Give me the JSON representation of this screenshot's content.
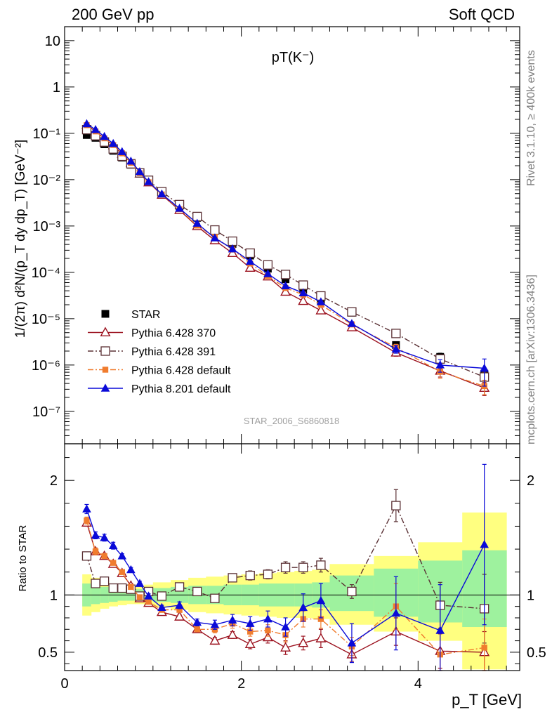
{
  "header": {
    "left": "200 GeV pp",
    "right": "Soft QCD"
  },
  "side": {
    "rivet": "Rivet 3.1.10, ≥ 400k events",
    "mcplots": "mcplots.cern.ch [arXiv:1306.3436]"
  },
  "colors": {
    "star": "#000000",
    "p370": "#9b111e",
    "p391": "#5a3034",
    "p6def": "#f07c2e",
    "p8": "#0a0ad8",
    "band_outer": "#ffff80",
    "band_inner": "#9ef29e"
  },
  "chart_data": [
    {
      "type": "scatter",
      "title": "pT(K⁻)",
      "analysis_id": "STAR_2006_S6860818",
      "ylabel": "1/(2π) d²N/(p_T dy dp_T) [GeV⁻²]",
      "yscale": "log",
      "xlim": [
        0,
        5.15
      ],
      "ylim": [
        2e-08,
        20
      ],
      "x_ticks": [
        0,
        2,
        4
      ],
      "y_ticks": [
        {
          "v": 1e-07,
          "label": "10⁻⁷"
        },
        {
          "v": 1e-06,
          "label": "10⁻⁶"
        },
        {
          "v": 1e-05,
          "label": "10⁻⁵"
        },
        {
          "v": 0.0001,
          "label": "10⁻⁴"
        },
        {
          "v": 0.001,
          "label": "10⁻³"
        },
        {
          "v": 0.01,
          "label": "10⁻²"
        },
        {
          "v": 0.1,
          "label": "10⁻¹"
        },
        {
          "v": 1,
          "label": "1"
        },
        {
          "v": 10,
          "label": "10"
        }
      ],
      "x": [
        0.25,
        0.35,
        0.45,
        0.55,
        0.65,
        0.75,
        0.85,
        0.95,
        1.1,
        1.3,
        1.5,
        1.7,
        1.9,
        2.1,
        2.3,
        2.5,
        2.7,
        2.9,
        3.25,
        3.75,
        4.25,
        4.75
      ],
      "series": [
        {
          "name": "STAR",
          "key": "star",
          "marker": "square-filled",
          "line": "none",
          "values": [
            0.092,
            0.08,
            0.058,
            0.042,
            0.03,
            0.021,
            0.014,
            0.0093,
            0.0055,
            0.0027,
            0.0015,
            0.00083,
            0.00041,
            0.00023,
            0.00012,
            7.1e-05,
            4.2e-05,
            2.5e-05,
            1.35e-05,
            2.7e-06,
            1.5e-06,
            6.5e-07
          ],
          "errors": [
            0.005,
            0.004,
            0.003,
            0.002,
            0.0015,
            0.001,
            0.0007,
            0.0005,
            0.0003,
            0.00015,
            8e-05,
            4e-05,
            2e-05,
            1.2e-05,
            7e-06,
            4e-06,
            3e-06,
            2e-06,
            1.2e-06,
            4e-07,
            3e-07,
            1.5e-07
          ]
        },
        {
          "name": "Pythia 6.428 370",
          "key": "p370",
          "marker": "triangle-open",
          "line": "solid",
          "values": [
            0.15,
            0.11,
            0.078,
            0.055,
            0.036,
            0.023,
            0.0135,
            0.0087,
            0.0047,
            0.0022,
            0.00099,
            0.00049,
            0.00026,
            0.000125,
            8.1e-05,
            3.8e-05,
            2.4e-05,
            1.5e-05,
            6.5e-06,
            1.85e-06,
            7.5e-07,
            3.2e-07
          ],
          "errors": [
            0,
            0,
            0,
            0,
            0,
            0,
            0,
            0,
            0,
            0,
            0,
            0,
            0,
            0,
            0,
            0,
            0,
            0,
            6e-07,
            3e-07,
            2e-07,
            1e-07
          ]
        },
        {
          "name": "Pythia 6.428 391",
          "key": "p391",
          "marker": "square-open",
          "line": "dashdot",
          "values": [
            0.12,
            0.089,
            0.065,
            0.046,
            0.032,
            0.022,
            0.014,
            0.0097,
            0.0055,
            0.0029,
            0.0016,
            0.00082,
            0.00047,
            0.00026,
            0.000145,
            9e-05,
            5.3e-05,
            3.1e-05,
            1.4e-05,
            4.8e-06,
            1.35e-06,
            5.5e-07
          ],
          "errors": [
            0,
            0,
            0,
            0,
            0,
            0,
            0,
            0,
            0,
            0,
            0,
            0,
            0,
            0,
            0,
            0,
            0,
            0,
            1e-06,
            3e-07,
            3e-07,
            1.5e-07
          ]
        },
        {
          "name": "Pythia 6.428 default",
          "key": "p6def",
          "marker": "square-small",
          "line": "dashdot",
          "values": [
            0.15,
            0.11,
            0.078,
            0.056,
            0.037,
            0.023,
            0.0138,
            0.0088,
            0.0048,
            0.0023,
            0.00102,
            0.00058,
            0.00031,
            0.000155,
            8.3e-05,
            4.6e-05,
            3.3e-05,
            2e-05,
            7.5e-06,
            2.4e-06,
            7.2e-07,
            3.5e-07
          ],
          "errors": [
            0,
            0,
            0,
            0,
            0,
            0,
            0,
            0,
            0,
            0,
            0,
            0,
            0,
            0,
            0,
            0,
            0,
            0,
            7e-07,
            4e-07,
            2e-07,
            1.2e-07
          ]
        },
        {
          "name": "Pythia 8.201 default",
          "key": "p8",
          "marker": "triangle-filled",
          "line": "solid",
          "values": [
            0.16,
            0.12,
            0.085,
            0.06,
            0.04,
            0.025,
            0.0148,
            0.009,
            0.0049,
            0.0024,
            0.00114,
            0.00055,
            0.00032,
            0.000172,
            9.3e-05,
            5.1e-05,
            3.6e-05,
            2.3e-05,
            7.8e-06,
            2.2e-06,
            1e-06,
            8.5e-07
          ],
          "errors": [
            0,
            0,
            0,
            0,
            0,
            0,
            0,
            0,
            0,
            0,
            0,
            0,
            0,
            0,
            0,
            0,
            0,
            0,
            8e-07,
            4e-07,
            3e-07,
            5e-07
          ]
        }
      ]
    },
    {
      "type": "scatter",
      "title": "Ratio to STAR",
      "ylabel": "Ratio to STAR",
      "xlabel": "p_T [GeV]",
      "xlim": [
        0,
        5.15
      ],
      "ylim": [
        0.34,
        2.32
      ],
      "x_ticks": [
        0,
        2,
        4
      ],
      "y_ticks": [
        0.5,
        1,
        2
      ],
      "bands": {
        "edges": [
          0.2,
          0.3,
          0.4,
          0.5,
          0.6,
          0.7,
          0.8,
          0.9,
          1.0,
          1.2,
          1.4,
          1.6,
          1.8,
          2.0,
          2.2,
          2.4,
          2.6,
          2.8,
          3.0,
          3.5,
          4.0,
          4.5,
          5.0
        ],
        "outer_low": [
          0.82,
          0.85,
          0.88,
          0.9,
          0.91,
          0.92,
          0.92,
          0.91,
          0.89,
          0.87,
          0.85,
          0.84,
          0.83,
          0.82,
          0.81,
          0.8,
          0.8,
          0.79,
          0.74,
          0.68,
          0.6,
          0.35
        ],
        "outer_high": [
          1.18,
          1.15,
          1.12,
          1.1,
          1.09,
          1.08,
          1.08,
          1.09,
          1.11,
          1.13,
          1.15,
          1.16,
          1.17,
          1.18,
          1.19,
          1.2,
          1.21,
          1.22,
          1.27,
          1.34,
          1.46,
          1.72
        ],
        "inner_low": [
          0.9,
          0.92,
          0.93,
          0.94,
          0.95,
          0.95,
          0.95,
          0.95,
          0.94,
          0.93,
          0.92,
          0.92,
          0.91,
          0.91,
          0.9,
          0.9,
          0.9,
          0.89,
          0.86,
          0.81,
          0.76,
          0.72
        ],
        "inner_high": [
          1.1,
          1.08,
          1.07,
          1.06,
          1.05,
          1.05,
          1.05,
          1.05,
          1.06,
          1.07,
          1.08,
          1.08,
          1.09,
          1.09,
          1.1,
          1.1,
          1.1,
          1.11,
          1.17,
          1.23,
          1.3,
          1.39
        ]
      },
      "series": [
        {
          "name": "Pythia 6.428 370",
          "key": "p370",
          "marker": "triangle-open",
          "line": "solid",
          "values": [
            1.63,
            1.38,
            1.34,
            1.27,
            1.19,
            1.08,
            0.97,
            0.93,
            0.85,
            0.81,
            0.7,
            0.6,
            0.65,
            0.57,
            0.63,
            0.54,
            0.58,
            0.62,
            0.48,
            0.68,
            0.51,
            0.5
          ],
          "errors": [
            0.03,
            0.03,
            0.02,
            0.02,
            0.02,
            0.02,
            0.02,
            0.02,
            0.02,
            0.02,
            0.02,
            0.03,
            0.03,
            0.04,
            0.05,
            0.06,
            0.06,
            0.08,
            0.06,
            0.12,
            0.15,
            0.18
          ]
        },
        {
          "name": "Pythia 6.428 391",
          "key": "p391",
          "marker": "square-open",
          "line": "dashdot",
          "values": [
            1.34,
            1.1,
            1.12,
            1.06,
            1.06,
            1.05,
            0.99,
            1.03,
            0.99,
            1.07,
            1.03,
            0.97,
            1.15,
            1.17,
            1.18,
            1.24,
            1.24,
            1.26,
            1.03,
            1.78,
            0.91,
            0.88
          ],
          "errors": [
            0.03,
            0.02,
            0.02,
            0.02,
            0.02,
            0.02,
            0.02,
            0.02,
            0.02,
            0.02,
            0.02,
            0.03,
            0.03,
            0.04,
            0.04,
            0.05,
            0.05,
            0.06,
            0.06,
            0.14,
            0.2,
            0.3
          ]
        },
        {
          "name": "Pythia 6.428 default",
          "key": "p6def",
          "marker": "square-small",
          "line": "dashdot",
          "values": [
            1.65,
            1.38,
            1.34,
            1.28,
            1.2,
            1.07,
            0.98,
            0.94,
            0.87,
            0.87,
            0.7,
            0.7,
            0.75,
            0.68,
            0.69,
            0.65,
            0.79,
            0.79,
            0.55,
            0.9,
            0.48,
            0.54
          ],
          "errors": [
            0.03,
            0.03,
            0.02,
            0.02,
            0.02,
            0.02,
            0.02,
            0.02,
            0.02,
            0.02,
            0.02,
            0.03,
            0.04,
            0.04,
            0.05,
            0.06,
            0.07,
            0.08,
            0.08,
            0.2,
            0.2,
            0.25
          ]
        },
        {
          "name": "Pythia 8.201 default",
          "key": "p8",
          "marker": "triangle-filled",
          "line": "solid",
          "values": [
            1.75,
            1.52,
            1.5,
            1.43,
            1.34,
            1.22,
            1.1,
            0.99,
            0.89,
            0.91,
            0.76,
            0.74,
            0.78,
            0.75,
            0.79,
            0.72,
            0.89,
            0.95,
            0.58,
            0.84,
            0.69,
            1.44
          ],
          "errors": [
            0.04,
            0.03,
            0.03,
            0.03,
            0.02,
            0.02,
            0.02,
            0.02,
            0.02,
            0.03,
            0.03,
            0.04,
            0.05,
            0.06,
            0.07,
            0.08,
            0.12,
            0.15,
            0.17,
            0.32,
            0.4,
            0.7
          ]
        }
      ]
    }
  ]
}
